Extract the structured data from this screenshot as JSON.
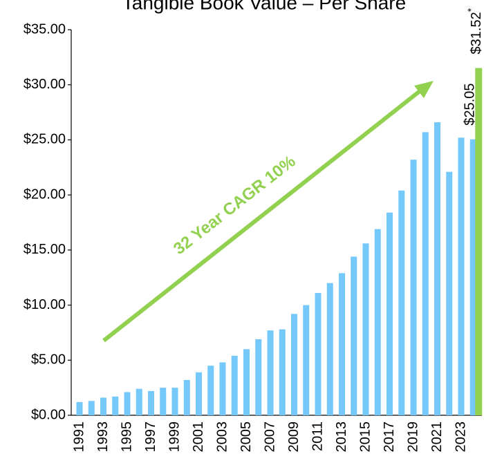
{
  "chart_data": {
    "type": "bar",
    "title": "Tangible Book Value – Per Share",
    "annotation": "32 Year CAGR 10%",
    "categories": [
      "1991",
      null,
      "1993",
      null,
      "1995",
      null,
      "1997",
      null,
      "1999",
      null,
      "2001",
      null,
      "2003",
      null,
      "2005",
      null,
      "2007",
      null,
      "2009",
      null,
      "2011",
      null,
      "2013",
      null,
      "2015",
      null,
      "2017",
      null,
      "2019",
      null,
      "2021",
      null,
      "2023",
      null
    ],
    "values": [
      1.2,
      1.3,
      1.6,
      1.7,
      2.1,
      2.4,
      2.2,
      2.5,
      2.5,
      3.2,
      3.9,
      4.5,
      4.8,
      5.4,
      6.0,
      6.9,
      7.7,
      7.8,
      9.2,
      10.0,
      11.1,
      12.0,
      12.9,
      14.4,
      15.6,
      16.9,
      18.4,
      20.4,
      23.2,
      25.7,
      26.6,
      22.1,
      25.2,
      25.05
    ],
    "value_labels": [
      null,
      null,
      null,
      null,
      null,
      null,
      null,
      null,
      null,
      null,
      null,
      null,
      null,
      null,
      null,
      null,
      null,
      null,
      null,
      null,
      null,
      null,
      null,
      null,
      null,
      null,
      null,
      null,
      null,
      null,
      null,
      null,
      null,
      "$25.05"
    ],
    "color": "#75c9fa",
    "highlight": {
      "value": 31.52,
      "label": "$31.52",
      "note": "*",
      "color": "#92d050"
    },
    "ylim": [
      0,
      35
    ],
    "yticks": [
      {
        "value": 0,
        "label": "$0.00"
      },
      {
        "value": 5,
        "label": "$5.00"
      },
      {
        "value": 10,
        "label": "$10.00"
      },
      {
        "value": 15,
        "label": "$15.00"
      },
      {
        "value": 20,
        "label": "$20.00"
      },
      {
        "value": 25,
        "label": "$25.00"
      },
      {
        "value": 30,
        "label": "$30.00"
      },
      {
        "value": 35,
        "label": "$35.00"
      }
    ],
    "grid": false
  }
}
